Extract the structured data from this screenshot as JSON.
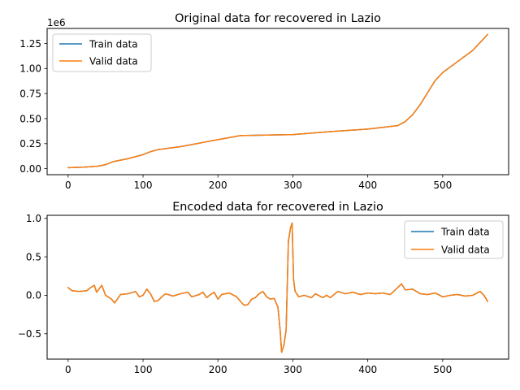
{
  "chart_data": [
    {
      "type": "line",
      "title": "Original data for recovered in Lazio",
      "xlabel": "",
      "ylabel": "",
      "offset_text": "1e6",
      "xlim": [
        -28,
        588
      ],
      "ylim": [
        -60000,
        1400000
      ],
      "x_ticks": [
        0,
        100,
        200,
        300,
        400,
        500
      ],
      "x_tick_labels": [
        "0",
        "100",
        "200",
        "300",
        "400",
        "500"
      ],
      "y_ticks": [
        0,
        250000,
        500000,
        750000,
        1000000,
        1250000
      ],
      "y_tick_labels": [
        "0.00",
        "0.25",
        "0.50",
        "0.75",
        "1.00",
        "1.25"
      ],
      "legend": {
        "position": "upper-left",
        "entries": [
          "Train data",
          "Valid data"
        ]
      },
      "grid": false,
      "series": [
        {
          "name": "Train data",
          "color": "#1f77b4",
          "points": [
            [
              0,
              10000
            ],
            [
              20,
              15000
            ],
            [
              40,
              25000
            ],
            [
              50,
              40000
            ],
            [
              60,
              70000
            ],
            [
              80,
              100000
            ],
            [
              100,
              140000
            ],
            [
              110,
              170000
            ],
            [
              120,
              190000
            ],
            [
              150,
              220000
            ],
            [
              200,
              290000
            ],
            [
              230,
              330000
            ],
            [
              300,
              340000
            ],
            [
              350,
              370000
            ],
            [
              400,
              395000
            ],
            [
              440,
              430000
            ],
            [
              450,
              470000
            ],
            [
              460,
              540000
            ],
            [
              470,
              640000
            ],
            [
              480,
              760000
            ],
            [
              490,
              880000
            ],
            [
              500,
              960000
            ],
            [
              520,
              1070000
            ],
            [
              540,
              1180000
            ],
            [
              560,
              1340000
            ]
          ]
        },
        {
          "name": "Valid data",
          "color": "#ff7f0e",
          "points": [
            [
              0,
              10000
            ],
            [
              20,
              15000
            ],
            [
              40,
              25000
            ],
            [
              50,
              40000
            ],
            [
              60,
              70000
            ],
            [
              80,
              100000
            ],
            [
              100,
              140000
            ],
            [
              110,
              170000
            ],
            [
              120,
              190000
            ],
            [
              150,
              220000
            ],
            [
              200,
              290000
            ],
            [
              230,
              330000
            ],
            [
              300,
              340000
            ],
            [
              350,
              370000
            ],
            [
              400,
              395000
            ],
            [
              440,
              430000
            ],
            [
              450,
              470000
            ],
            [
              460,
              540000
            ],
            [
              470,
              640000
            ],
            [
              480,
              760000
            ],
            [
              490,
              880000
            ],
            [
              500,
              960000
            ],
            [
              520,
              1070000
            ],
            [
              540,
              1180000
            ],
            [
              560,
              1340000
            ]
          ]
        }
      ]
    },
    {
      "type": "line",
      "title": "Encoded data for recovered in Lazio",
      "xlabel": "",
      "ylabel": "",
      "xlim": [
        -28,
        588
      ],
      "ylim": [
        -0.83,
        1.04
      ],
      "x_ticks": [
        0,
        100,
        200,
        300,
        400,
        500
      ],
      "x_tick_labels": [
        "0",
        "100",
        "200",
        "300",
        "400",
        "500"
      ],
      "y_ticks": [
        -0.5,
        0,
        0.5,
        1.0
      ],
      "y_tick_labels": [
        "−0.5",
        "0.0",
        "0.5",
        "1.0"
      ],
      "legend": {
        "position": "upper-right",
        "entries": [
          "Train data",
          "Valid data"
        ]
      },
      "grid": false,
      "series": [
        {
          "name": "Train data",
          "color": "#1f77b4",
          "points": [
            [
              0,
              0.1
            ],
            [
              5,
              0.06
            ],
            [
              15,
              0.05
            ],
            [
              25,
              0.06
            ],
            [
              30,
              0.1
            ],
            [
              35,
              0.13
            ],
            [
              38,
              0.04
            ],
            [
              45,
              0.13
            ],
            [
              50,
              0.0
            ],
            [
              58,
              -0.05
            ],
            [
              62,
              -0.1
            ],
            [
              65,
              -0.06
            ],
            [
              70,
              0.01
            ],
            [
              80,
              0.02
            ],
            [
              90,
              0.05
            ],
            [
              95,
              -0.02
            ],
            [
              100,
              0.0
            ],
            [
              105,
              0.08
            ],
            [
              110,
              0.02
            ],
            [
              115,
              -0.08
            ],
            [
              120,
              -0.07
            ],
            [
              125,
              -0.02
            ],
            [
              130,
              0.02
            ],
            [
              140,
              -0.01
            ],
            [
              150,
              0.02
            ],
            [
              160,
              0.04
            ],
            [
              165,
              -0.02
            ],
            [
              175,
              0.01
            ],
            [
              180,
              0.04
            ],
            [
              185,
              -0.03
            ],
            [
              190,
              0.01
            ],
            [
              195,
              0.04
            ],
            [
              200,
              -0.05
            ],
            [
              205,
              0.01
            ],
            [
              215,
              0.03
            ],
            [
              225,
              -0.02
            ],
            [
              230,
              -0.08
            ],
            [
              235,
              -0.13
            ],
            [
              240,
              -0.12
            ],
            [
              245,
              -0.05
            ],
            [
              250,
              -0.03
            ],
            [
              255,
              0.02
            ],
            [
              260,
              0.05
            ],
            [
              265,
              -0.02
            ],
            [
              270,
              -0.05
            ],
            [
              275,
              -0.04
            ],
            [
              280,
              -0.15
            ],
            [
              283,
              -0.45
            ],
            [
              285,
              -0.74
            ],
            [
              288,
              -0.65
            ],
            [
              291,
              -0.45
            ],
            [
              293,
              0.3
            ],
            [
              294,
              0.7
            ],
            [
              297,
              0.88
            ],
            [
              299,
              0.94
            ],
            [
              301,
              0.2
            ],
            [
              303,
              0.05
            ],
            [
              308,
              -0.02
            ],
            [
              315,
              0.0
            ],
            [
              325,
              -0.03
            ],
            [
              330,
              0.02
            ],
            [
              340,
              -0.03
            ],
            [
              345,
              0.0
            ],
            [
              350,
              -0.03
            ],
            [
              360,
              0.05
            ],
            [
              370,
              0.02
            ],
            [
              380,
              0.04
            ],
            [
              390,
              0.01
            ],
            [
              400,
              0.03
            ],
            [
              410,
              0.02
            ],
            [
              420,
              0.03
            ],
            [
              430,
              0.01
            ],
            [
              440,
              0.1
            ],
            [
              445,
              0.15
            ],
            [
              450,
              0.07
            ],
            [
              460,
              0.08
            ],
            [
              470,
              0.02
            ],
            [
              480,
              0.01
            ],
            [
              490,
              0.03
            ],
            [
              500,
              -0.02
            ],
            [
              510,
              0.0
            ],
            [
              520,
              0.01
            ],
            [
              530,
              -0.01
            ],
            [
              540,
              0.0
            ],
            [
              550,
              0.05
            ],
            [
              555,
              0.0
            ],
            [
              560,
              -0.08
            ]
          ]
        },
        {
          "name": "Valid data",
          "color": "#ff7f0e",
          "points": [
            [
              0,
              0.1
            ],
            [
              5,
              0.06
            ],
            [
              15,
              0.05
            ],
            [
              25,
              0.06
            ],
            [
              30,
              0.1
            ],
            [
              35,
              0.13
            ],
            [
              38,
              0.04
            ],
            [
              45,
              0.13
            ],
            [
              50,
              0.0
            ],
            [
              58,
              -0.05
            ],
            [
              62,
              -0.1
            ],
            [
              65,
              -0.06
            ],
            [
              70,
              0.01
            ],
            [
              80,
              0.02
            ],
            [
              90,
              0.05
            ],
            [
              95,
              -0.02
            ],
            [
              100,
              0.0
            ],
            [
              105,
              0.08
            ],
            [
              110,
              0.02
            ],
            [
              115,
              -0.08
            ],
            [
              120,
              -0.07
            ],
            [
              125,
              -0.02
            ],
            [
              130,
              0.02
            ],
            [
              140,
              -0.01
            ],
            [
              150,
              0.02
            ],
            [
              160,
              0.04
            ],
            [
              165,
              -0.02
            ],
            [
              175,
              0.01
            ],
            [
              180,
              0.04
            ],
            [
              185,
              -0.03
            ],
            [
              190,
              0.01
            ],
            [
              195,
              0.04
            ],
            [
              200,
              -0.05
            ],
            [
              205,
              0.01
            ],
            [
              215,
              0.03
            ],
            [
              225,
              -0.02
            ],
            [
              230,
              -0.08
            ],
            [
              235,
              -0.13
            ],
            [
              240,
              -0.12
            ],
            [
              245,
              -0.05
            ],
            [
              250,
              -0.03
            ],
            [
              255,
              0.02
            ],
            [
              260,
              0.05
            ],
            [
              265,
              -0.02
            ],
            [
              270,
              -0.05
            ],
            [
              275,
              -0.04
            ],
            [
              280,
              -0.15
            ],
            [
              283,
              -0.45
            ],
            [
              285,
              -0.74
            ],
            [
              288,
              -0.65
            ],
            [
              291,
              -0.45
            ],
            [
              293,
              0.3
            ],
            [
              294,
              0.7
            ],
            [
              297,
              0.88
            ],
            [
              299,
              0.94
            ],
            [
              301,
              0.2
            ],
            [
              303,
              0.05
            ],
            [
              308,
              -0.02
            ],
            [
              315,
              0.0
            ],
            [
              325,
              -0.03
            ],
            [
              330,
              0.02
            ],
            [
              340,
              -0.03
            ],
            [
              345,
              0.0
            ],
            [
              350,
              -0.03
            ],
            [
              360,
              0.05
            ],
            [
              370,
              0.02
            ],
            [
              380,
              0.04
            ],
            [
              390,
              0.01
            ],
            [
              400,
              0.03
            ],
            [
              410,
              0.02
            ],
            [
              420,
              0.03
            ],
            [
              430,
              0.01
            ],
            [
              440,
              0.1
            ],
            [
              445,
              0.15
            ],
            [
              450,
              0.07
            ],
            [
              460,
              0.08
            ],
            [
              470,
              0.02
            ],
            [
              480,
              0.01
            ],
            [
              490,
              0.03
            ],
            [
              500,
              -0.02
            ],
            [
              510,
              0.0
            ],
            [
              520,
              0.01
            ],
            [
              530,
              -0.01
            ],
            [
              540,
              0.0
            ],
            [
              550,
              0.05
            ],
            [
              555,
              0.0
            ],
            [
              560,
              -0.08
            ]
          ]
        }
      ]
    }
  ]
}
